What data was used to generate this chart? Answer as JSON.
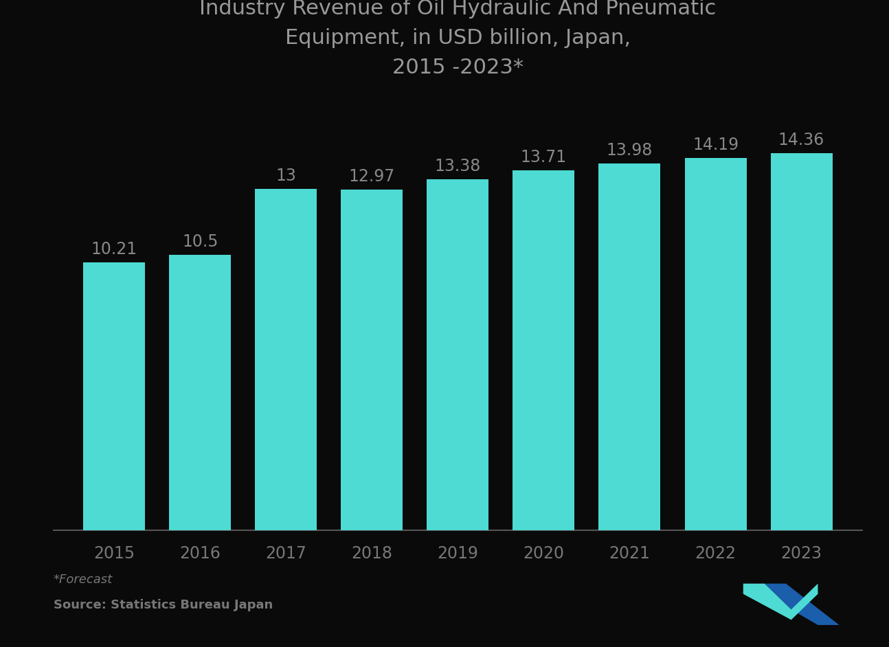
{
  "title": "Industry Revenue of Oil Hydraulic And Pneumatic\nEquipment, in USD billion, Japan,\n2015 -2023*",
  "categories": [
    "2015",
    "2016",
    "2017",
    "2018",
    "2019",
    "2020",
    "2021",
    "2022",
    "2023"
  ],
  "values": [
    10.21,
    10.5,
    13.0,
    12.97,
    13.38,
    13.71,
    13.98,
    14.19,
    14.36
  ],
  "labels": [
    "10.21",
    "10.5",
    "13",
    "12.97",
    "13.38",
    "13.71",
    "13.98",
    "14.19",
    "14.36"
  ],
  "bar_color": "#4DDBD4",
  "background_color": "#0a0a0a",
  "title_color": "#999999",
  "bar_label_color": "#888888",
  "xtick_color": "#777777",
  "footnote1": "*Forecast",
  "footnote2": "Source: Statistics Bureau Japan",
  "title_fontsize": 22,
  "label_fontsize": 17,
  "tick_fontsize": 17,
  "footnote_fontsize": 13,
  "ylim": [
    0,
    16.5
  ],
  "bar_width": 0.72,
  "spine_color": "#555555",
  "logo_teal": "#4DDBD4",
  "logo_blue": "#1B5EAB"
}
